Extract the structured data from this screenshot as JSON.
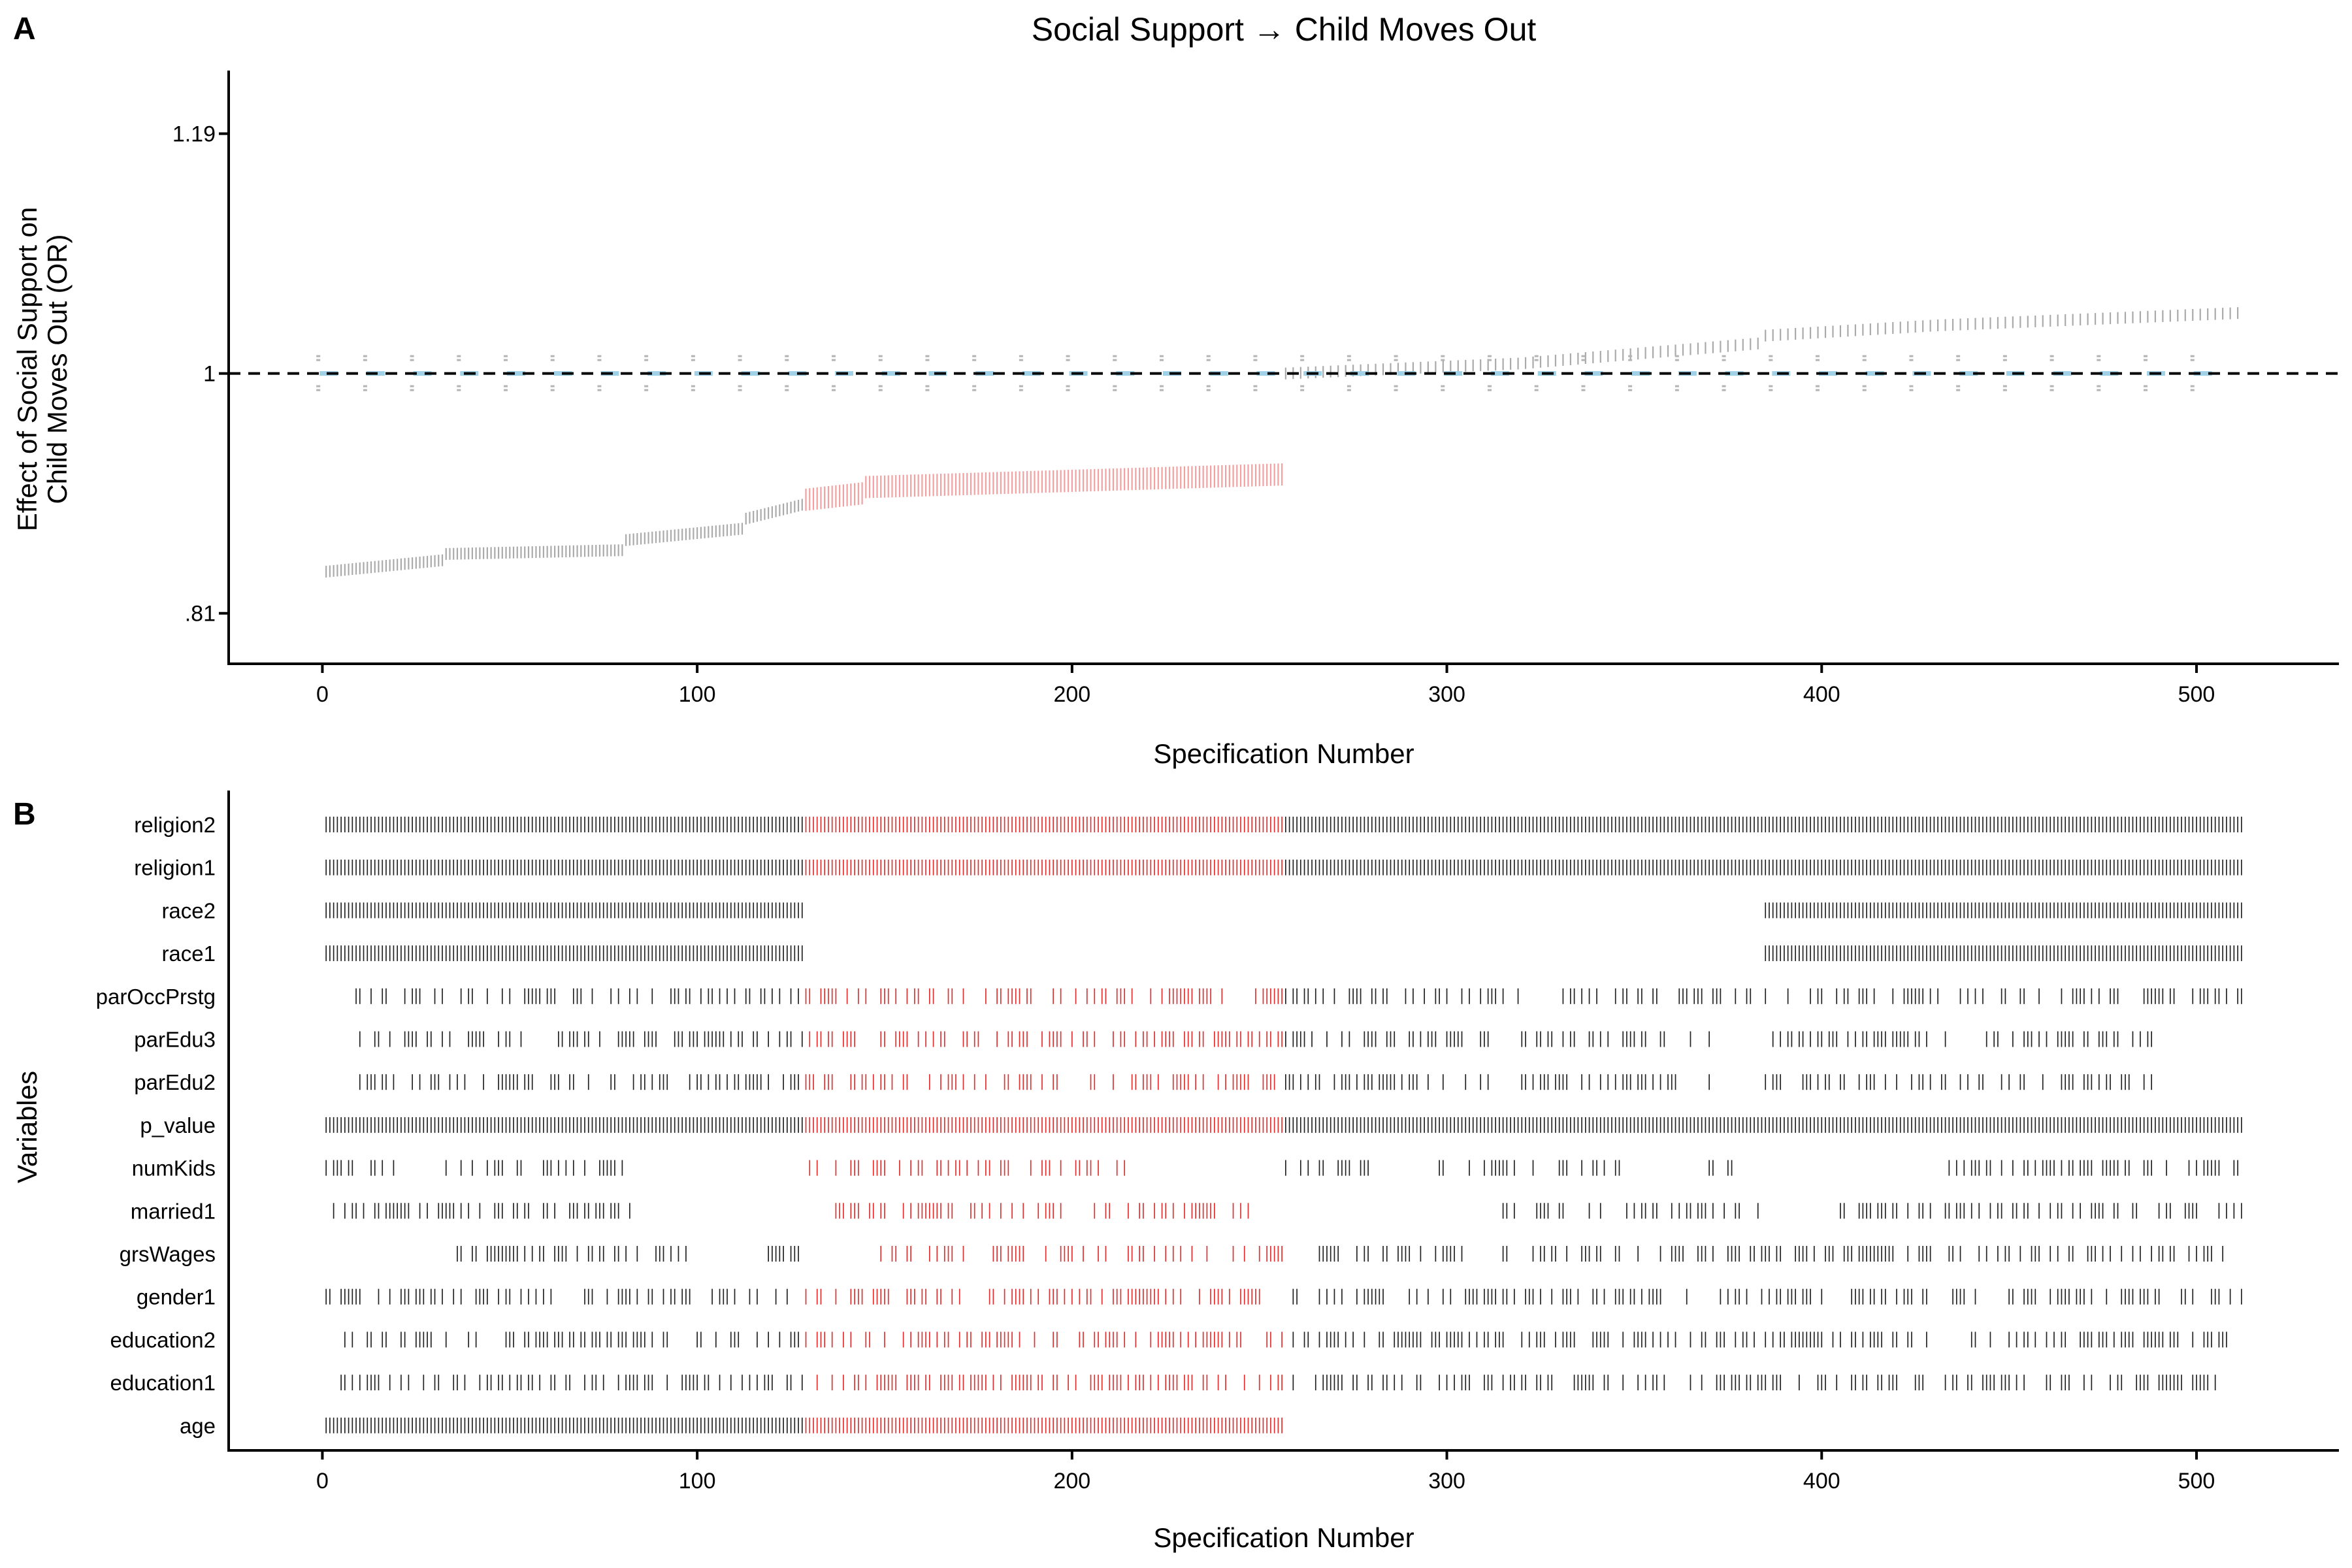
{
  "panel_a_label": "A",
  "panel_b_label": "B",
  "chart_data": [
    {
      "type": "scatter",
      "title": "Social Support → Child Moves Out",
      "xlabel": "Specification Number",
      "ylabel": [
        "Effect of Social Support on",
        "Child Moves Out (OR)"
      ],
      "xlim": [
        -25,
        538
      ],
      "ylim": [
        0.77,
        1.24
      ],
      "xticks": [
        0,
        100,
        200,
        300,
        400,
        500
      ],
      "yticks": [
        0.81,
        1,
        1.19
      ],
      "ytick_labels": [
        ".81",
        "1",
        "1.19"
      ],
      "reference_line": 1,
      "grid": false,
      "n_specifications": 512,
      "colors": {
        "not_significant": "#aaaaaa",
        "significant_negative": "#f2a0a0",
        "null_estimate": "#9fd0e6",
        "reference_line": "#000000"
      },
      "series": [
        {
          "spec_start": 1,
          "spec_end": 128,
          "color_key": "not_significant",
          "value_breakpoints": [
            [
              1,
              0.843
            ],
            [
              32,
              0.852
            ],
            [
              33,
              0.857
            ],
            [
              80,
              0.86
            ],
            [
              81,
              0.868
            ],
            [
              112,
              0.877
            ],
            [
              113,
              0.885
            ],
            [
              128,
              0.896
            ]
          ]
        },
        {
          "spec_start": 129,
          "spec_end": 256,
          "color_key": "significant_negative",
          "value_breakpoints": [
            [
              129,
              0.9
            ],
            [
              144,
              0.905
            ],
            [
              145,
              0.91
            ],
            [
              256,
              0.92
            ]
          ]
        },
        {
          "spec_start": 257,
          "spec_end": 384,
          "color_key": "not_significant",
          "value_breakpoints": [
            [
              257,
              1.0
            ],
            [
              320,
              1.008
            ],
            [
              384,
              1.024
            ]
          ]
        },
        {
          "spec_start": 385,
          "spec_end": 512,
          "color_key": "not_significant",
          "value_breakpoints": [
            [
              385,
              1.03
            ],
            [
              430,
              1.038
            ],
            [
              512,
              1.048
            ]
          ]
        },
        {
          "spec_start": 1,
          "spec_end": 512,
          "color_key": "null_estimate",
          "value_breakpoints": [
            [
              1,
              1.0
            ],
            [
              512,
              1.0
            ]
          ],
          "note_shape": "repeating dashes with grey interval marks"
        }
      ]
    },
    {
      "type": "table",
      "xlabel": "Specification Number",
      "ylabel": "Variables",
      "xlim": [
        -25,
        538
      ],
      "xticks": [
        0,
        100,
        200,
        300,
        400,
        500
      ],
      "grid": false,
      "highlight_range": [
        129,
        256
      ],
      "colors": {
        "included": "#222222",
        "highlight": "#e03030"
      },
      "variables": [
        {
          "name": "religion2",
          "pattern": "full"
        },
        {
          "name": "religion1",
          "pattern": "full"
        },
        {
          "name": "race2",
          "pattern": "ranges",
          "ranges": [
            [
              1,
              128
            ],
            [
              385,
              512
            ]
          ]
        },
        {
          "name": "race1",
          "pattern": "ranges",
          "ranges": [
            [
              1,
              128
            ],
            [
              385,
              512
            ]
          ]
        },
        {
          "name": "parOccPrstg",
          "pattern": "sparse",
          "ranges": [
            [
              5,
              512
            ]
          ],
          "skip": [
            [
              320,
              328
            ],
            [
              330,
              330
            ]
          ]
        },
        {
          "name": "parEdu3",
          "pattern": "sparse",
          "ranges": [
            [
              9,
              370
            ],
            [
              385,
              488
            ]
          ],
          "skip": [
            [
              312,
              318
            ]
          ]
        },
        {
          "name": "parEdu2",
          "pattern": "sparse",
          "ranges": [
            [
              9,
              370
            ],
            [
              385,
              488
            ]
          ],
          "skip": [
            [
              312,
              318
            ]
          ]
        },
        {
          "name": "p_value",
          "pattern": "full"
        },
        {
          "name": "numKids",
          "pattern": "sparse",
          "ranges": [
            [
              1,
              20
            ],
            [
              33,
              80
            ],
            [
              129,
              214
            ],
            [
              257,
              280
            ],
            [
              298,
              347
            ],
            [
              366,
              376
            ],
            [
              430,
              512
            ]
          ]
        },
        {
          "name": "married1",
          "pattern": "sparse",
          "ranges": [
            [
              1,
              82
            ],
            [
              137,
              251
            ],
            [
              313,
              384
            ],
            [
              404,
              512
            ]
          ]
        },
        {
          "name": "grsWages",
          "pattern": "sparse",
          "ranges": [
            [
              35,
              97
            ],
            [
              113,
              128
            ],
            [
              148,
              256
            ],
            [
              262,
              304
            ],
            [
              315,
              512
            ]
          ]
        },
        {
          "name": "gender1",
          "pattern": "sparse",
          "ranges": [
            [
              1,
              124
            ],
            [
              129,
              170
            ],
            [
              177,
              250
            ],
            [
              259,
              512
            ]
          ]
        },
        {
          "name": "education2",
          "pattern": "sparse",
          "ranges": [
            [
              3,
              508
            ]
          ],
          "skip": [
            [
              130,
              131
            ]
          ]
        },
        {
          "name": "education1",
          "pattern": "sparse",
          "ranges": [
            [
              3,
              508
            ]
          ],
          "skip": [
            [
              130,
              131
            ]
          ]
        },
        {
          "name": "age",
          "pattern": "ranges",
          "ranges": [
            [
              1,
              256
            ]
          ]
        }
      ]
    }
  ]
}
